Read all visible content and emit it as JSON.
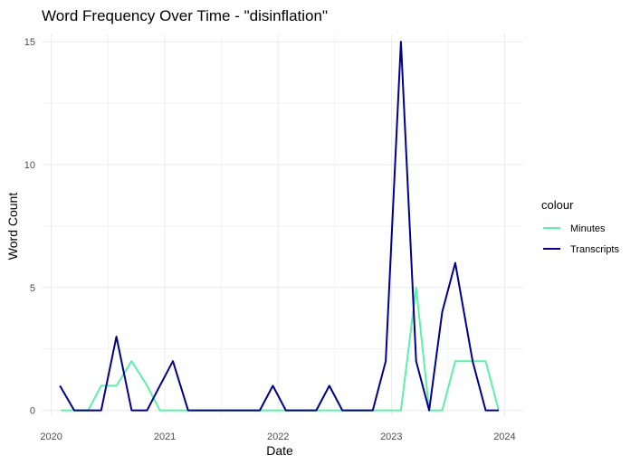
{
  "chart_data": {
    "type": "line",
    "title": "Word Frequency Over Time - \"disinflation\"",
    "xlabel": "Date",
    "ylabel": "Word Count",
    "x_ticks": [
      "2020",
      "2021",
      "2022",
      "2023",
      "2024"
    ],
    "y_ticks": [
      "0",
      "5",
      "10",
      "15"
    ],
    "xlim": [
      "2019-12-01",
      "2024-03-01"
    ],
    "ylim": [
      -0.2,
      15.3
    ],
    "grid": true,
    "legend": {
      "title": "colour",
      "position": "right"
    },
    "series": [
      {
        "name": "Minutes",
        "color": "#5cf0a8",
        "points": [
          [
            "2020-02-01",
            0
          ],
          [
            "2020-03-15",
            0
          ],
          [
            "2020-04-29",
            0
          ],
          [
            "2020-06-10",
            1
          ],
          [
            "2020-07-29",
            1
          ],
          [
            "2020-09-16",
            2
          ],
          [
            "2020-11-05",
            1
          ],
          [
            "2020-12-16",
            0
          ],
          [
            "2021-01-27",
            0
          ],
          [
            "2021-03-17",
            0
          ],
          [
            "2021-04-28",
            0
          ],
          [
            "2021-06-16",
            0
          ],
          [
            "2021-07-28",
            0
          ],
          [
            "2021-09-22",
            0
          ],
          [
            "2021-11-03",
            0
          ],
          [
            "2021-12-15",
            0
          ],
          [
            "2022-01-26",
            0
          ],
          [
            "2022-03-16",
            0
          ],
          [
            "2022-05-04",
            0
          ],
          [
            "2022-06-15",
            0
          ],
          [
            "2022-07-27",
            0
          ],
          [
            "2022-09-21",
            0
          ],
          [
            "2022-11-02",
            0
          ],
          [
            "2022-12-14",
            0
          ],
          [
            "2023-02-01",
            0
          ],
          [
            "2023-03-22",
            5
          ],
          [
            "2023-05-03",
            0
          ],
          [
            "2023-06-14",
            0
          ],
          [
            "2023-07-26",
            2
          ],
          [
            "2023-09-20",
            2
          ],
          [
            "2023-11-01",
            2
          ],
          [
            "2023-12-13",
            0
          ]
        ]
      },
      {
        "name": "Transcripts",
        "color": "#00008b",
        "points": [
          [
            "2020-01-29",
            1
          ],
          [
            "2020-03-15",
            0
          ],
          [
            "2020-04-29",
            0
          ],
          [
            "2020-06-10",
            0
          ],
          [
            "2020-07-29",
            3
          ],
          [
            "2020-09-16",
            0
          ],
          [
            "2020-11-05",
            0
          ],
          [
            "2020-12-16",
            1
          ],
          [
            "2021-01-27",
            2
          ],
          [
            "2021-03-17",
            0
          ],
          [
            "2021-04-28",
            0
          ],
          [
            "2021-06-16",
            0
          ],
          [
            "2021-07-28",
            0
          ],
          [
            "2021-09-22",
            0
          ],
          [
            "2021-11-03",
            0
          ],
          [
            "2021-12-15",
            1
          ],
          [
            "2022-01-26",
            0
          ],
          [
            "2022-03-16",
            0
          ],
          [
            "2022-05-04",
            0
          ],
          [
            "2022-06-15",
            1
          ],
          [
            "2022-07-27",
            0
          ],
          [
            "2022-09-21",
            0
          ],
          [
            "2022-11-02",
            0
          ],
          [
            "2022-12-14",
            2
          ],
          [
            "2023-02-01",
            15
          ],
          [
            "2023-03-22",
            2
          ],
          [
            "2023-05-03",
            0
          ],
          [
            "2023-06-14",
            4
          ],
          [
            "2023-07-26",
            6
          ],
          [
            "2023-09-20",
            2
          ],
          [
            "2023-11-01",
            0
          ],
          [
            "2023-12-13",
            0
          ]
        ]
      }
    ]
  }
}
